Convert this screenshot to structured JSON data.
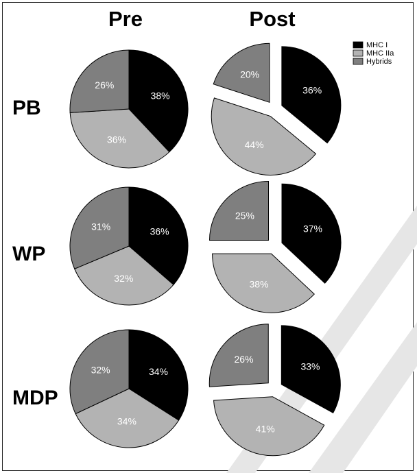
{
  "chart_data": {
    "type": "pie",
    "columns": [
      "Pre",
      "Post"
    ],
    "rows": [
      "PB",
      "WP",
      "MDP"
    ],
    "legend": [
      {
        "name": "MHC I",
        "color": "#000000"
      },
      {
        "name": "MHC IIa",
        "color": "#b3b3b3"
      },
      {
        "name": "Hybrids",
        "color": "#7f7f7f"
      }
    ],
    "pies": [
      {
        "row": "PB",
        "column": "Pre",
        "exploded": false,
        "slices": [
          {
            "name": "MHC I",
            "value": 38,
            "label": "38%"
          },
          {
            "name": "MHC IIa",
            "value": 36,
            "label": "36%"
          },
          {
            "name": "Hybrids",
            "value": 26,
            "label": "26%"
          }
        ]
      },
      {
        "row": "PB",
        "column": "Post",
        "exploded": true,
        "slices": [
          {
            "name": "MHC I",
            "value": 36,
            "label": "36%"
          },
          {
            "name": "MHC IIa",
            "value": 44,
            "label": "44%"
          },
          {
            "name": "Hybrids",
            "value": 20,
            "label": "20%"
          }
        ]
      },
      {
        "row": "WP",
        "column": "Pre",
        "exploded": false,
        "slices": [
          {
            "name": "MHC I",
            "value": 36,
            "label": "36%"
          },
          {
            "name": "MHC IIa",
            "value": 32,
            "label": "32%"
          },
          {
            "name": "Hybrids",
            "value": 31,
            "label": "31%"
          }
        ]
      },
      {
        "row": "WP",
        "column": "Post",
        "exploded": true,
        "slices": [
          {
            "name": "MHC I",
            "value": 37,
            "label": "37%"
          },
          {
            "name": "MHC IIa",
            "value": 38,
            "label": "38%"
          },
          {
            "name": "Hybrids",
            "value": 25,
            "label": "25%"
          }
        ]
      },
      {
        "row": "MDP",
        "column": "Pre",
        "exploded": false,
        "slices": [
          {
            "name": "MHC I",
            "value": 34,
            "label": "34%"
          },
          {
            "name": "MHC IIa",
            "value": 34,
            "label": "34%"
          },
          {
            "name": "Hybrids",
            "value": 32,
            "label": "32%"
          }
        ]
      },
      {
        "row": "MDP",
        "column": "Post",
        "exploded": true,
        "slices": [
          {
            "name": "MHC I",
            "value": 33,
            "label": "33%"
          },
          {
            "name": "MHC IIa",
            "value": 41,
            "label": "41%"
          },
          {
            "name": "Hybrids",
            "value": 26,
            "label": "26%"
          }
        ]
      }
    ]
  }
}
